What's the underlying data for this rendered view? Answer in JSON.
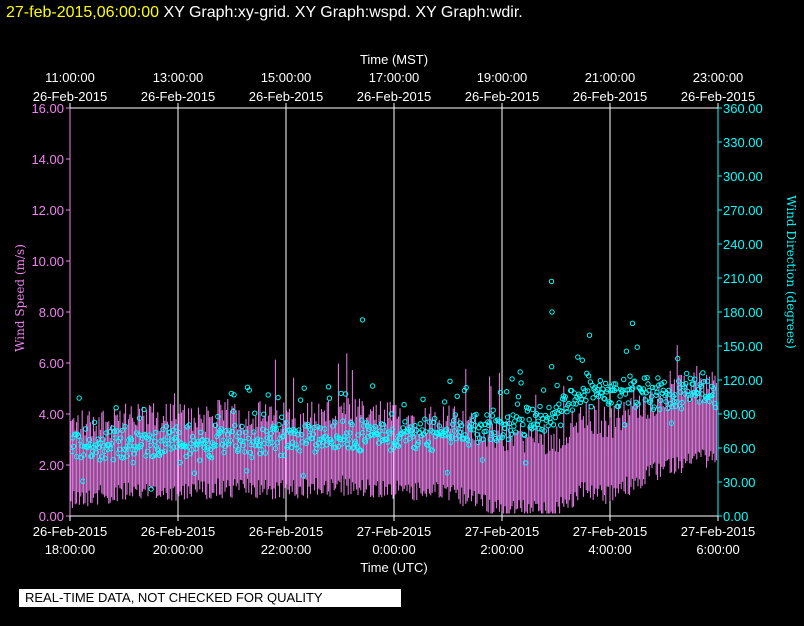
{
  "header": {
    "date": "27-feb-2015,06:00:00",
    "graphs": " XY Graph:xy-grid.  XY Graph:wspd.  XY Graph:wdir."
  },
  "disclaimer": "REAL-TIME DATA, NOT CHECKED FOR QUALITY",
  "colors": {
    "speed": "#ee82ee",
    "direction": "#00ffff",
    "axis": "#ffffff",
    "background": "#000000"
  },
  "chart_data": {
    "type": "scatter",
    "top_axis": {
      "label": "Time (MST)",
      "ticks": [
        {
          "time": "11:00:00",
          "date": "26-Feb-2015"
        },
        {
          "time": "13:00:00",
          "date": "26-Feb-2015"
        },
        {
          "time": "15:00:00",
          "date": "26-Feb-2015"
        },
        {
          "time": "17:00:00",
          "date": "26-Feb-2015"
        },
        {
          "time": "19:00:00",
          "date": "26-Feb-2015"
        },
        {
          "time": "21:00:00",
          "date": "26-Feb-2015"
        },
        {
          "time": "23:00:00",
          "date": "26-Feb-2015"
        }
      ]
    },
    "bottom_axis": {
      "label": "Time (UTC)",
      "ticks": [
        {
          "date": "26-Feb-2015",
          "time": "18:00:00"
        },
        {
          "date": "26-Feb-2015",
          "time": "20:00:00"
        },
        {
          "date": "26-Feb-2015",
          "time": "22:00:00"
        },
        {
          "date": "27-Feb-2015",
          "time": "0:00:00"
        },
        {
          "date": "27-Feb-2015",
          "time": "2:00:00"
        },
        {
          "date": "27-Feb-2015",
          "time": "4:00:00"
        },
        {
          "date": "27-Feb-2015",
          "time": "6:00:00"
        }
      ],
      "range": [
        "26-Feb-2015 18:00:00",
        "27-Feb-2015 06:00:00"
      ]
    },
    "left_axis": {
      "label": "Wind Speed (m/s)",
      "ylim": [
        0,
        16
      ],
      "ticks": [
        "0.00",
        "2.00",
        "4.00",
        "6.00",
        "8.00",
        "10.00",
        "12.00",
        "14.00",
        "16.00"
      ]
    },
    "right_axis": {
      "label": "Wind Direction (degrees)",
      "ylim": [
        0,
        360
      ],
      "ticks": [
        "0.00",
        "30.00",
        "60.00",
        "90.00",
        "120.00",
        "150.00",
        "180.00",
        "210.00",
        "240.00",
        "270.00",
        "300.00",
        "330.00",
        "360.00"
      ]
    },
    "grid": "vertical",
    "series": [
      {
        "kind": "wind-speed",
        "style": "bars",
        "axis": "left",
        "approx_profile": [
          {
            "utc": "26-Feb-2015 18:00:00",
            "mean": 2.3,
            "max": 4.5
          },
          {
            "utc": "26-Feb-2015 19:00:00",
            "mean": 2.5,
            "max": 4.8
          },
          {
            "utc": "26-Feb-2015 20:00:00",
            "mean": 2.6,
            "max": 5.2
          },
          {
            "utc": "26-Feb-2015 21:00:00",
            "mean": 2.7,
            "max": 5.8
          },
          {
            "utc": "26-Feb-2015 22:00:00",
            "mean": 2.6,
            "max": 6.3
          },
          {
            "utc": "26-Feb-2015 23:00:00",
            "mean": 2.8,
            "max": 6.5
          },
          {
            "utc": "27-Feb-2015 00:00:00",
            "mean": 2.6,
            "max": 6.0
          },
          {
            "utc": "27-Feb-2015 01:00:00",
            "mean": 2.5,
            "max": 6.2
          },
          {
            "utc": "27-Feb-2015 02:00:00",
            "mean": 1.9,
            "max": 5.8
          },
          {
            "utc": "27-Feb-2015 03:00:00",
            "mean": 1.8,
            "max": 5.4
          },
          {
            "utc": "27-Feb-2015 03:30:00",
            "mean": 2.6,
            "max": 6.0
          },
          {
            "utc": "27-Feb-2015 04:00:00",
            "mean": 2.4,
            "max": 6.5
          },
          {
            "utc": "27-Feb-2015 05:00:00",
            "mean": 3.5,
            "max": 7.0
          },
          {
            "utc": "27-Feb-2015 06:00:00",
            "mean": 4.0,
            "max": 6.8
          }
        ]
      },
      {
        "kind": "wind-direction",
        "style": "circles",
        "axis": "right",
        "approx_profile": [
          {
            "utc": "26-Feb-2015 18:00:00",
            "mean": 62
          },
          {
            "utc": "26-Feb-2015 19:00:00",
            "mean": 63
          },
          {
            "utc": "26-Feb-2015 20:00:00",
            "mean": 64
          },
          {
            "utc": "26-Feb-2015 21:00:00",
            "mean": 66
          },
          {
            "utc": "26-Feb-2015 22:00:00",
            "mean": 67
          },
          {
            "utc": "26-Feb-2015 23:00:00",
            "mean": 68
          },
          {
            "utc": "27-Feb-2015 00:00:00",
            "mean": 70
          },
          {
            "utc": "27-Feb-2015 01:00:00",
            "mean": 75
          },
          {
            "utc": "27-Feb-2015 02:00:00",
            "mean": 80
          },
          {
            "utc": "27-Feb-2015 03:00:00",
            "mean": 88
          },
          {
            "utc": "27-Feb-2015 03:30:00",
            "mean": 112
          },
          {
            "utc": "27-Feb-2015 04:00:00",
            "mean": 110
          },
          {
            "utc": "27-Feb-2015 05:00:00",
            "mean": 108
          },
          {
            "utc": "27-Feb-2015 06:00:00",
            "mean": 110
          }
        ],
        "notable_points": [
          {
            "utc": "26-Feb-2015 23:25:00",
            "value": 173
          },
          {
            "utc": "27-Feb-2015 02:55:00",
            "value": 207
          },
          {
            "utc": "27-Feb-2015 02:55:30",
            "value": 180
          },
          {
            "utc": "27-Feb-2015 04:25:00",
            "value": 170
          }
        ]
      }
    ]
  }
}
